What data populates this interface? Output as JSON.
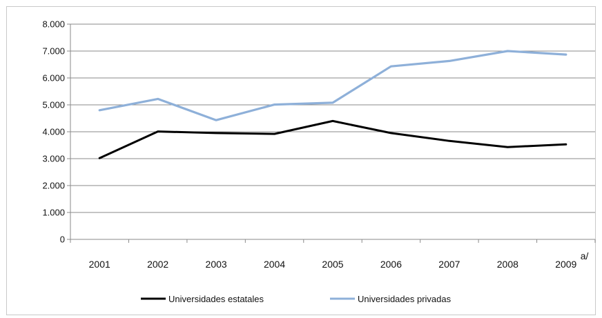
{
  "chart_data": {
    "type": "line",
    "categories": [
      "2001",
      "2002",
      "2003",
      "2004",
      "2005",
      "2006",
      "2007",
      "2008",
      "2009"
    ],
    "last_category_superscript": "a/",
    "y_ticks": [
      "0",
      "1.000",
      "2.000",
      "3.000",
      "4.000",
      "5.000",
      "6.000",
      "7.000",
      "8.000"
    ],
    "ylim": [
      0,
      8000
    ],
    "grid": true,
    "legend_position": "bottom",
    "series": [
      {
        "name": "Universidades estatales",
        "color": "#000000",
        "values": [
          3020,
          4010,
          3950,
          3920,
          4400,
          3950,
          3660,
          3430,
          3530
        ]
      },
      {
        "name": "Universidades privadas",
        "color": "#8eb0d9",
        "values": [
          4800,
          5220,
          4430,
          5010,
          5080,
          6430,
          6630,
          7000,
          6870
        ]
      }
    ]
  }
}
